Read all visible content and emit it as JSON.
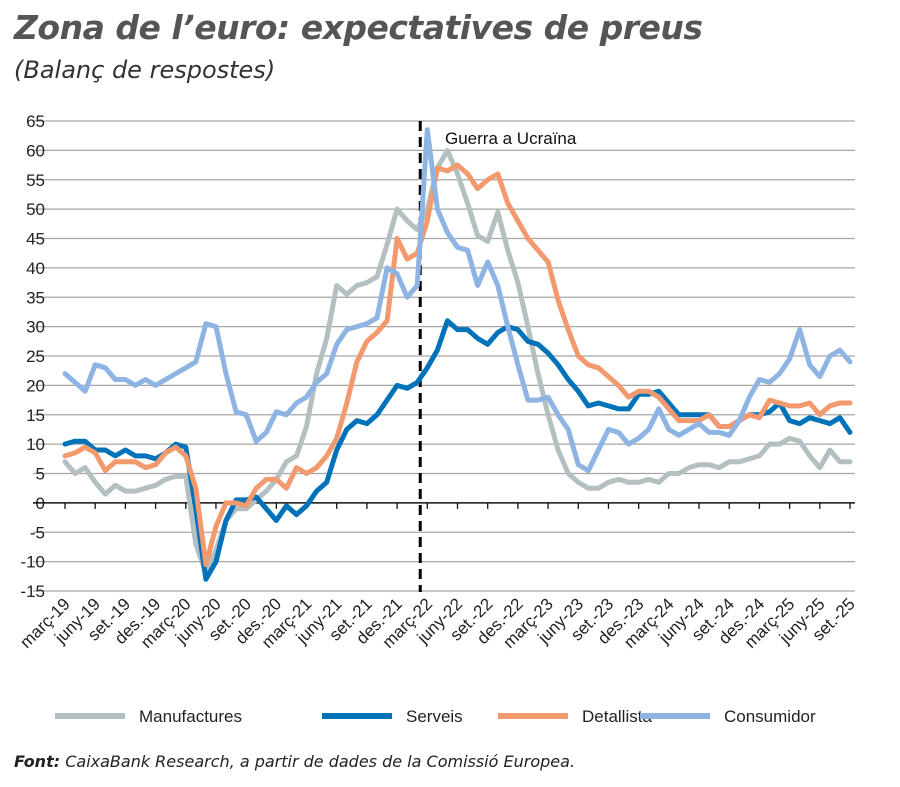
{
  "title": "Zona de l’euro: expectatives de preus",
  "subtitle": "(Balanç de respostes)",
  "source_label": "Font:",
  "source_text": " CaixaBank Research, a partir de dades de la Comissió Europea.",
  "chart_data": {
    "type": "line",
    "ylim": [
      -15,
      65
    ],
    "yticks": [
      -15,
      -10,
      -5,
      0,
      5,
      10,
      15,
      20,
      25,
      30,
      35,
      40,
      45,
      50,
      55,
      60,
      65
    ],
    "grid": true,
    "legend_position": "bottom",
    "xtick_labels": [
      "març-19",
      "juny-19",
      "set.-19",
      "des.-19",
      "març-20",
      "juny-20",
      "set.-20",
      "des.-20",
      "març-21",
      "juny-21",
      "set.-21",
      "des.-21",
      "març-22",
      "juny-22",
      "set.-22",
      "des.-22",
      "març-23",
      "juny-23",
      "set.-23",
      "des.-23",
      "març-24",
      "juny-24",
      "set.-24",
      "des.-24",
      "març-25",
      "juny-25",
      "set.-25"
    ],
    "x_start": "2019-03",
    "x_end": "2025-09",
    "frequency": "monthly",
    "annotation": {
      "label": "Guerra a Ucraïna",
      "x": "2022-02"
    },
    "series": [
      {
        "name": "Manufactures",
        "color": "#b3bfc1",
        "values": [
          7,
          5,
          6,
          3.5,
          1.5,
          3,
          2,
          2,
          2.5,
          3,
          4,
          4.5,
          4.5,
          -7,
          -12,
          -8,
          -3,
          -1,
          -1,
          0.5,
          2,
          4,
          7,
          8,
          13,
          22,
          28,
          37,
          35.5,
          37,
          37.5,
          38.5,
          44,
          50,
          48,
          46.5,
          50,
          57,
          60,
          56,
          51,
          45.5,
          44.5,
          49.5,
          43,
          37.5,
          30,
          22,
          15,
          9,
          5,
          3.5,
          2.5,
          2.5,
          3.5,
          4,
          3.5,
          3.5,
          4,
          3.5,
          5,
          5,
          6,
          6.5,
          6.5,
          6,
          7,
          7,
          7.5,
          8,
          10,
          10,
          11,
          10.5,
          8,
          6,
          9,
          7,
          7
        ]
      },
      {
        "name": "Serveis",
        "color": "#0072b9",
        "values": [
          10,
          10.5,
          10.5,
          9,
          9,
          8,
          9,
          8,
          8,
          7.5,
          8.5,
          10,
          9.5,
          -1,
          -13,
          -10,
          -3,
          0.5,
          0.5,
          1,
          -1,
          -3,
          -0.5,
          -2,
          -0.5,
          2,
          3.5,
          9,
          12.5,
          14,
          13.5,
          15,
          17.5,
          20,
          19.5,
          20.5,
          23,
          26,
          31,
          29.5,
          29.5,
          28,
          27,
          29,
          30,
          29.5,
          27.5,
          27,
          25.5,
          23.5,
          21,
          19,
          16.5,
          17,
          16.5,
          16,
          16,
          18.5,
          18.5,
          19,
          17,
          15,
          15,
          15,
          15,
          13,
          13,
          14,
          15,
          15,
          15.5,
          17,
          14,
          13.5,
          14.5,
          14,
          13.5,
          14.5,
          12
        ]
      },
      {
        "name": "Detallista",
        "color": "#f2996e",
        "values": [
          8,
          8.5,
          9.5,
          8.5,
          5.5,
          7,
          7,
          7,
          6,
          6.5,
          8.5,
          9.5,
          8,
          2.5,
          -10.5,
          -4,
          0,
          0,
          -0.5,
          2.5,
          4,
          4,
          2.5,
          6,
          5,
          6,
          8,
          11,
          17,
          24,
          27.5,
          29,
          31,
          45,
          41.5,
          42.5,
          48,
          57,
          56.5,
          57.5,
          56,
          53.5,
          55,
          56,
          51,
          48,
          45,
          43,
          41,
          34.5,
          29.5,
          25,
          23.5,
          23,
          21.5,
          20,
          18,
          19,
          19,
          18,
          16,
          14,
          14,
          14,
          15,
          13,
          13,
          14,
          15,
          14.5,
          17.5,
          17,
          16.5,
          16.5,
          17,
          15,
          16.5,
          17,
          17
        ]
      },
      {
        "name": "Consumidor",
        "color": "#8db4e2",
        "values": [
          22,
          20.5,
          19,
          23.5,
          23,
          21,
          21,
          20,
          21,
          20,
          21,
          22,
          23,
          24,
          30.5,
          30,
          22,
          15.5,
          15,
          10.5,
          12,
          15.5,
          15,
          17,
          18,
          20.5,
          22,
          27,
          29.5,
          30,
          30.5,
          31.5,
          40,
          39,
          35,
          37,
          63.5,
          50,
          46,
          43.5,
          43,
          37,
          41,
          37,
          30,
          23.5,
          17.5,
          17.5,
          18,
          15,
          12.5,
          6.5,
          5.5,
          9,
          12.5,
          12,
          10,
          11,
          12.5,
          16,
          12.5,
          11.5,
          12.5,
          13.5,
          12,
          12,
          11.5,
          14,
          18,
          21,
          20.5,
          22,
          24.5,
          29.5,
          23.5,
          21.5,
          25,
          26,
          24
        ]
      }
    ]
  }
}
